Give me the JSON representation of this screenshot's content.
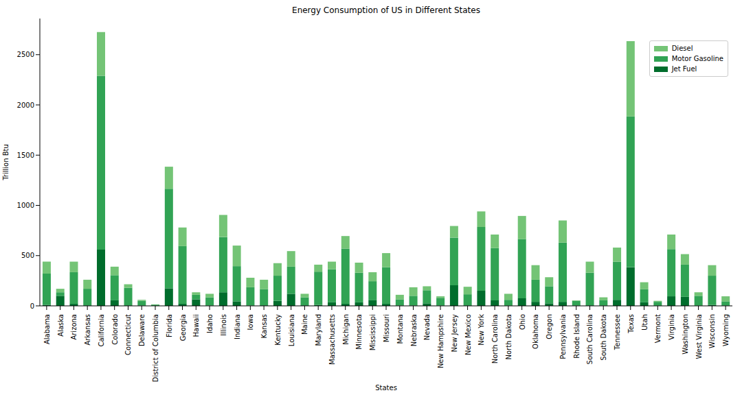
{
  "chart_data": {
    "type": "bar",
    "title": "Energy Consumption of US in Different States",
    "x_label": "States",
    "y_label": "Trillion Btu",
    "categories": [
      "Alabama",
      "Alaska",
      "Arizona",
      "Arkansas",
      "California",
      "Colorado",
      "Connecticut",
      "Delaware",
      "District of Columbia",
      "Florida",
      "Georgia",
      "Hawaii",
      "Idaho",
      "Illinois",
      "Indiana",
      "Iowa",
      "Kansas",
      "Kentucky",
      "Louisiana",
      "Maine",
      "Maryland",
      "Massachusetts",
      "Michigan",
      "Minnesota",
      "Mississippi",
      "Missouri",
      "Montana",
      "Nebraska",
      "Nevada",
      "New Hampshire",
      "New Jersey",
      "New Mexico",
      "New York",
      "North Carolina",
      "North Dakota",
      "Ohio",
      "Oklahoma",
      "Oregon",
      "Pennsylvania",
      "Rhode Island",
      "South Carolina",
      "South Dakota",
      "Tennessee",
      "Texas",
      "Utah",
      "Vermont",
      "Virginia",
      "Washington",
      "West Virginia",
      "Wisconsin",
      "Wyoming"
    ],
    "series": [
      {
        "name": "Jet Fuel",
        "color": "#006d2c",
        "values": [
          10,
          100,
          20,
          5,
          560,
          55,
          5,
          2,
          0,
          175,
          20,
          65,
          3,
          135,
          45,
          3,
          5,
          50,
          120,
          5,
          10,
          35,
          20,
          35,
          55,
          20,
          3,
          3,
          25,
          2,
          205,
          5,
          150,
          55,
          2,
          75,
          40,
          25,
          40,
          2,
          5,
          2,
          60,
          385,
          35,
          1,
          95,
          90,
          2,
          10,
          2
        ]
      },
      {
        "name": "Motor Gasoline",
        "color": "#31a354",
        "values": [
          310,
          35,
          315,
          165,
          1730,
          250,
          175,
          48,
          12,
          990,
          575,
          45,
          82,
          550,
          350,
          182,
          160,
          250,
          270,
          80,
          330,
          330,
          550,
          295,
          190,
          365,
          62,
          97,
          130,
          78,
          475,
          110,
          635,
          520,
          58,
          590,
          220,
          170,
          590,
          48,
          325,
          53,
          380,
          1500,
          130,
          39,
          470,
          320,
          98,
          290,
          43
        ]
      },
      {
        "name": "Diesel",
        "color": "#74c476",
        "values": [
          120,
          35,
          105,
          90,
          435,
          85,
          35,
          10,
          3,
          220,
          185,
          25,
          35,
          220,
          205,
          95,
          95,
          125,
          155,
          35,
          70,
          75,
          125,
          100,
          90,
          140,
          45,
          85,
          40,
          15,
          115,
          75,
          155,
          135,
          60,
          230,
          145,
          90,
          220,
          5,
          110,
          30,
          140,
          750,
          70,
          10,
          145,
          105,
          35,
          105,
          50
        ]
      }
    ],
    "ylim": [
      0,
      2860
    ],
    "yticks": [
      0,
      500,
      1000,
      1500,
      2000,
      2500
    ],
    "stacked": true,
    "legend": "upper right"
  }
}
